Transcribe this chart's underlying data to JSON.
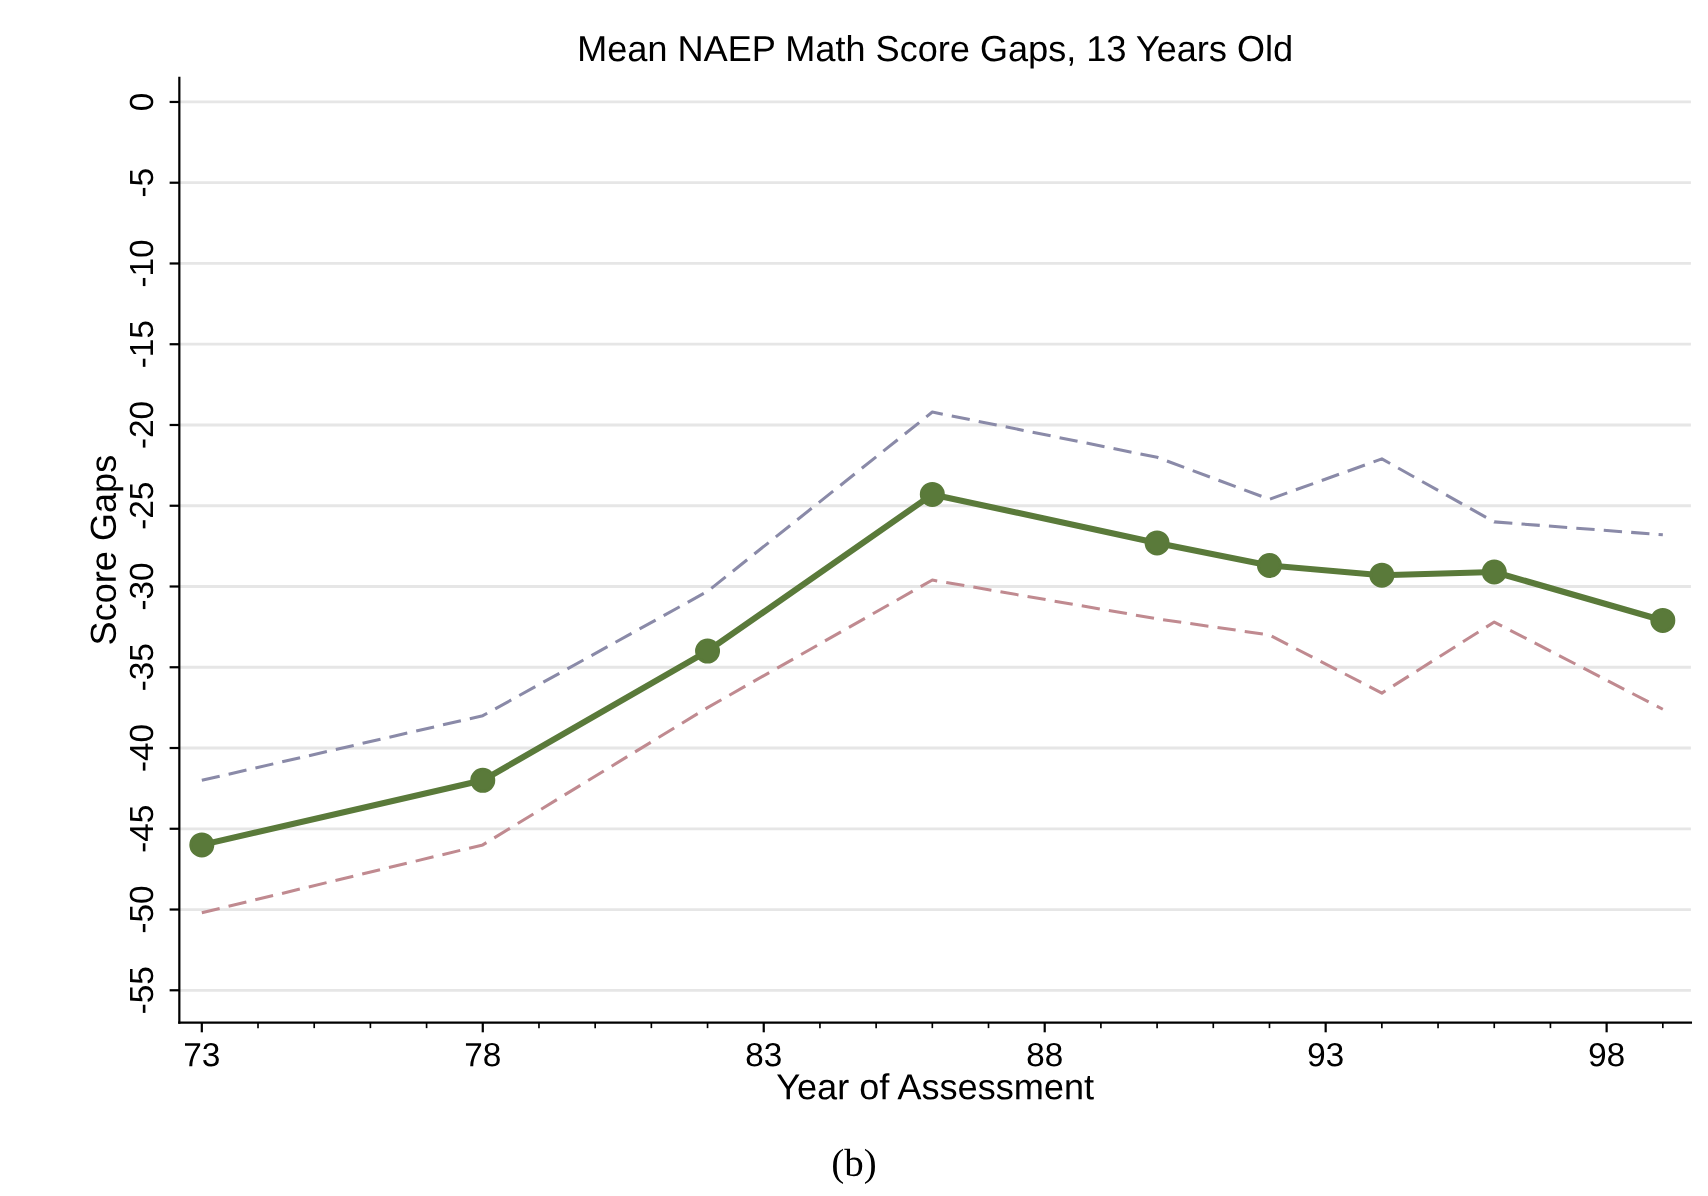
{
  "chart_data": {
    "type": "line",
    "title": "Mean NAEP Math Score Gaps, 13 Years Old",
    "xlabel": "Year of Assessment",
    "ylabel": "Score Gaps",
    "annotations": [
      "(b)"
    ],
    "x": [
      73,
      78,
      82,
      86,
      90,
      92,
      94,
      96,
      99
    ],
    "series": [
      {
        "color": "#5a7a3a",
        "marker": "circle",
        "line_style": "solid",
        "values": [
          -46,
          -42,
          -34,
          -24.3,
          -27.3,
          -28.7,
          -29.3,
          -29.1,
          -32.1
        ]
      },
      {
        "color": "#8a8aa8",
        "marker": "none",
        "line_style": "dashed",
        "values": [
          -42,
          -38,
          -30.3,
          -19.2,
          -22,
          -24.6,
          -22.1,
          -26,
          -26.8
        ]
      },
      {
        "color": "#c08a90",
        "marker": "none",
        "line_style": "dashed",
        "values": [
          -50.2,
          -46,
          -37.5,
          -29.6,
          -32,
          -33,
          -36.6,
          -32.2,
          -37.6
        ]
      }
    ],
    "xlim": [
      72.6,
      99.5
    ],
    "xticks": [
      73,
      78,
      83,
      88,
      93,
      98
    ],
    "ylim": [
      -57,
      1.5
    ],
    "yticks": [
      0,
      -5,
      -10,
      -15,
      -20,
      -25,
      -30,
      -35,
      -40,
      -45,
      -50,
      -55
    ],
    "grid": "y",
    "legend": false
  }
}
